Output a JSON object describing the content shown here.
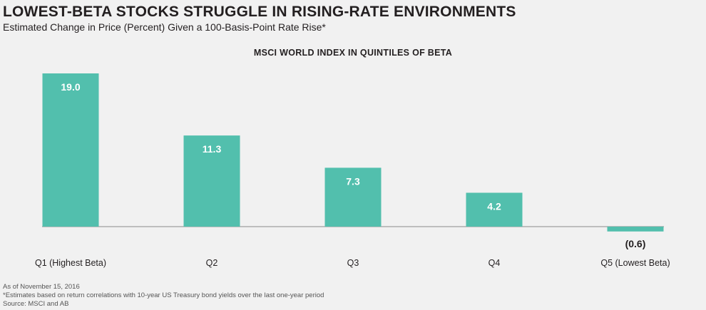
{
  "header": {
    "title": "LOWEST-BETA STOCKS STRUGGLE IN RISING-RATE ENVIRONMENTS",
    "subtitle": "Estimated Change in Price (Percent) Given a 100-Basis-Point Rate Rise*"
  },
  "chart_data": {
    "type": "bar",
    "title": "MSCI WORLD INDEX IN QUINTILES OF BETA",
    "categories": [
      "Q1 (Highest Beta)",
      "Q2",
      "Q3",
      "Q4",
      "Q5 (Lowest Beta)"
    ],
    "values": [
      19.0,
      11.3,
      7.3,
      4.2,
      -0.6
    ],
    "data_labels": [
      "19.0",
      "11.3",
      "7.3",
      "4.2",
      "(0.6)"
    ],
    "xlabel": "",
    "ylabel": "",
    "ylim": [
      -0.6,
      19.0
    ],
    "grid": false,
    "legend": "none",
    "bar_color": "#52bfad"
  },
  "footnotes": {
    "date": "As of November 15, 2016",
    "note": "*Estimates based on return correlations with 10-year US Treasury bond yields over the last one-year period",
    "source": "Source: MSCI and AB"
  }
}
